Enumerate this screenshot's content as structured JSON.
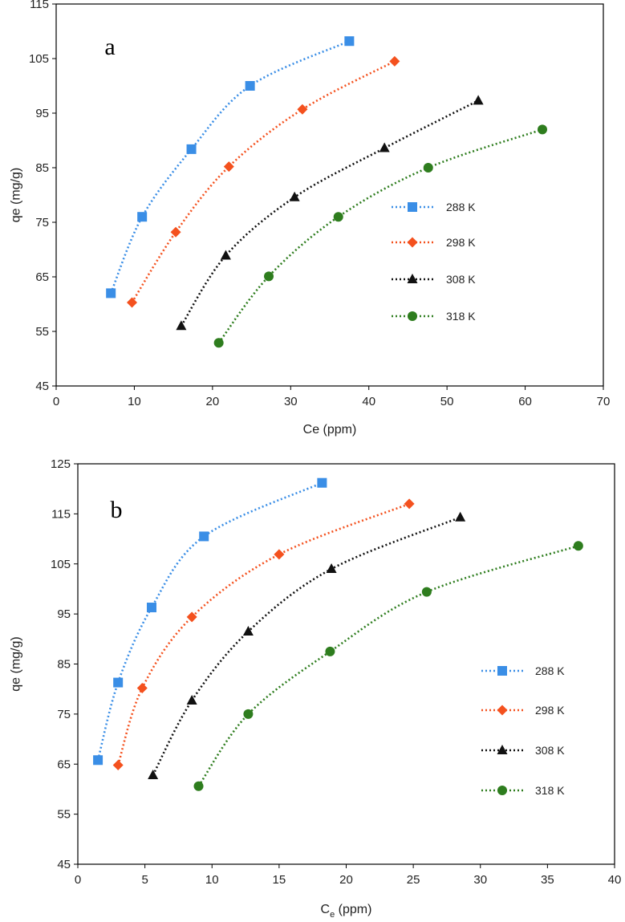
{
  "chart_data": [
    {
      "type": "scatter",
      "panel_label": "a",
      "xlabel": "Ce (ppm)",
      "xlabel_sub": "",
      "xlabel_suffix": "",
      "ylabel": "qe (mg/g)",
      "xlim": [
        0,
        70
      ],
      "ylim": [
        45,
        115
      ],
      "x_ticks": [
        0,
        10,
        20,
        30,
        40,
        50,
        60,
        70
      ],
      "y_ticks": [
        45,
        55,
        65,
        75,
        85,
        95,
        105,
        115
      ],
      "legend_position": "right",
      "series": [
        {
          "name": "288 K",
          "marker": "square",
          "color": "#3a8ee6",
          "x": [
            7.0,
            11.0,
            17.3,
            24.8,
            37.5
          ],
          "y": [
            62.0,
            76.0,
            88.4,
            100.0,
            108.2
          ]
        },
        {
          "name": "298 K",
          "marker": "diamond",
          "color": "#f4511e",
          "x": [
            9.7,
            15.3,
            22.1,
            31.5,
            43.3
          ],
          "y": [
            60.3,
            73.2,
            85.2,
            95.7,
            104.5
          ]
        },
        {
          "name": "308 K",
          "marker": "triangle",
          "color": "#111111",
          "x": [
            16.0,
            21.7,
            30.5,
            42.0,
            54.0
          ],
          "y": [
            56.0,
            68.9,
            79.6,
            88.6,
            97.3
          ]
        },
        {
          "name": "318 K",
          "marker": "circle",
          "color": "#2e7d1e",
          "x": [
            20.8,
            27.2,
            36.1,
            47.6,
            62.2
          ],
          "y": [
            52.9,
            65.1,
            76.0,
            85.0,
            92.0
          ]
        }
      ]
    },
    {
      "type": "scatter",
      "panel_label": "b",
      "xlabel": "C",
      "xlabel_sub": "e",
      "xlabel_suffix": " (ppm)",
      "ylabel": "qe (mg/g)",
      "xlim": [
        0,
        40
      ],
      "ylim": [
        45,
        125
      ],
      "x_ticks": [
        0,
        5,
        10,
        15,
        20,
        25,
        30,
        35,
        40
      ],
      "y_ticks": [
        45,
        55,
        65,
        75,
        85,
        95,
        105,
        115,
        125
      ],
      "legend_position": "right",
      "series": [
        {
          "name": "288 K",
          "marker": "square",
          "color": "#3a8ee6",
          "x": [
            1.5,
            3.0,
            5.5,
            9.4,
            18.2
          ],
          "y": [
            65.8,
            81.3,
            96.3,
            110.5,
            121.2
          ]
        },
        {
          "name": "298 K",
          "marker": "diamond",
          "color": "#f4511e",
          "x": [
            3.0,
            4.8,
            8.5,
            15.0,
            24.7
          ],
          "y": [
            64.8,
            80.2,
            94.4,
            106.9,
            117.0
          ]
        },
        {
          "name": "308 K",
          "marker": "triangle",
          "color": "#111111",
          "x": [
            5.6,
            8.5,
            12.7,
            18.9,
            28.5
          ],
          "y": [
            62.8,
            77.7,
            91.5,
            104.0,
            114.3
          ]
        },
        {
          "name": "318 K",
          "marker": "circle",
          "color": "#2e7d1e",
          "x": [
            9.0,
            12.7,
            18.8,
            26.0,
            37.3
          ],
          "y": [
            60.6,
            75.0,
            87.5,
            99.4,
            108.6
          ]
        }
      ]
    }
  ]
}
